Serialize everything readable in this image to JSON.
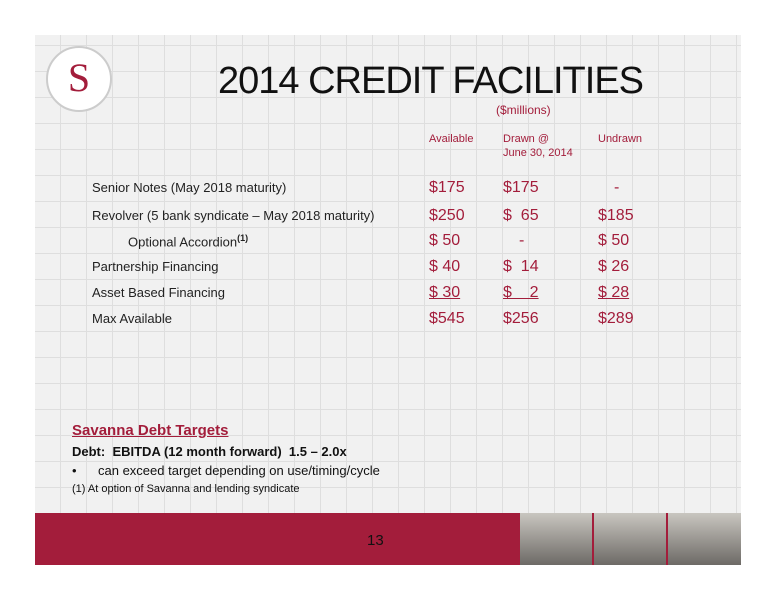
{
  "header": {
    "logo_letter": "S",
    "title": "2014 CREDIT FACILITIES",
    "subtitle": "($millions)"
  },
  "table": {
    "columns": [
      [
        "Available"
      ],
      [
        "Drawn @",
        "June 30, 2014"
      ],
      [
        "Undrawn"
      ]
    ],
    "rows": [
      {
        "label": "Senior Notes (May 2018 maturity)",
        "cells": [
          "$175",
          "$175",
          "-"
        ]
      },
      {
        "label": "Revolver (5 bank syndicate – May 2018 maturity)",
        "cells": [
          "$250",
          "$  65",
          "$185"
        ]
      },
      {
        "label": "Optional Accordion",
        "note": "(1)",
        "indent": true,
        "cells": [
          "$ 50",
          "-",
          "$ 50"
        ]
      },
      {
        "label": "Partnership Financing",
        "cells": [
          "$ 40",
          "$  14",
          "$ 26"
        ]
      },
      {
        "label": "Asset Based Financing",
        "underline": true,
        "cells": [
          "$ 30",
          "$    2",
          "$ 28"
        ]
      },
      {
        "label": "Max Available",
        "cells": [
          "$545",
          "$256",
          "$289"
        ]
      }
    ]
  },
  "targets": {
    "heading": "Savanna Debt Targets",
    "ratio": "Debt:  EBITDA (12 month forward)  1.5 – 2.0x",
    "bullet": "can exceed target depending on use/timing/cycle"
  },
  "footnote": "(1) At option of Savanna and lending syndicate",
  "page_number": "13"
}
